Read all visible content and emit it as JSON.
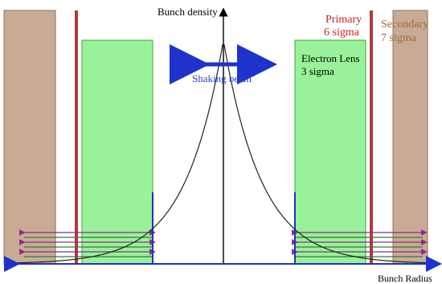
{
  "labels": {
    "y_axis": "Bunch density",
    "x_axis": "Bunch Radius",
    "primary_line1": "Primary",
    "primary_line2": "6 sigma",
    "secondary_line1": "Secondary",
    "secondary_line2": "7 sigma",
    "lens_line1": "Electron Lens",
    "lens_line2": "3 sigma",
    "shaking": "Shaking beam"
  },
  "colors": {
    "collimator_fill": "#c9ab95",
    "collimator_edge": "#8e6f5c",
    "primary_line": "#b23a3a",
    "lens_fill": "#99f299",
    "lens_edge": "#3ea63e",
    "curve": "#222222",
    "axis": "#000000",
    "blue": "#1d33cc",
    "purple": "#8a2d8a",
    "green_lines": "#2e7d32",
    "primary_text": "#cc2222",
    "secondary_text": "#a06a3a",
    "lens_text": "#000000",
    "shaking_text": "#2a3fd6"
  }
}
